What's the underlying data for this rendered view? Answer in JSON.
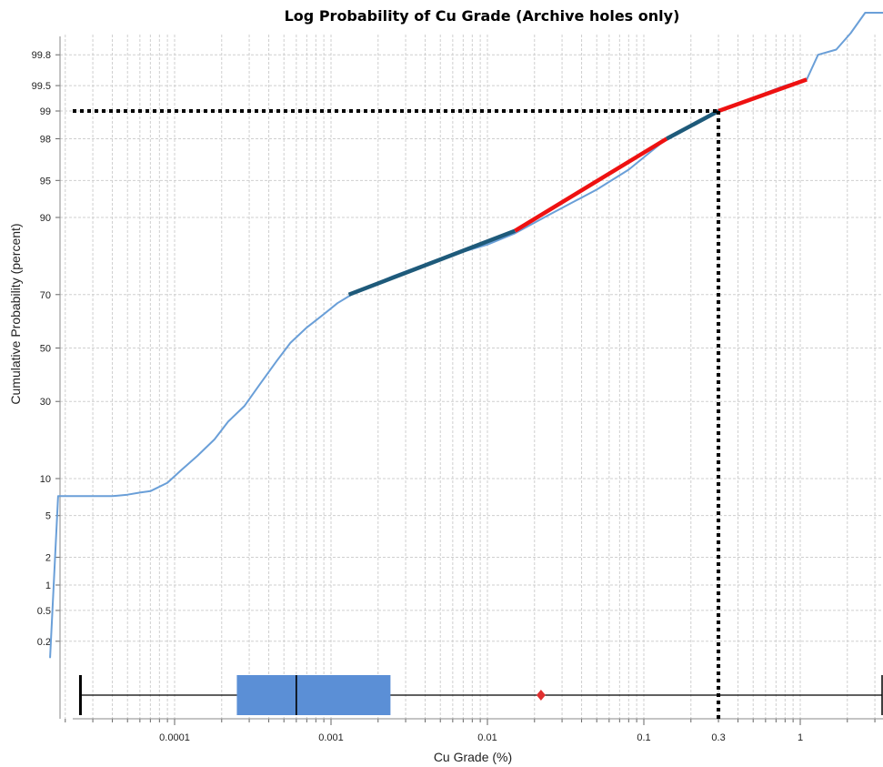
{
  "chart_data": {
    "type": "line",
    "title": "Log Probability of Cu Grade (Archive holes only)",
    "xlabel": "Cu Grade (%)",
    "ylabel": "Cumulative Probability (percent)",
    "x_scale": "log",
    "y_scale": "probability",
    "xlim": [
      1.5e-05,
      4
    ],
    "ylim": [
      0.1,
      99.95
    ],
    "x_ticks": [
      {
        "value": 0.0001,
        "label": "0.0001"
      },
      {
        "value": 0.001,
        "label": "0.001"
      },
      {
        "value": 0.01,
        "label": "0.01"
      },
      {
        "value": 0.1,
        "label": "0.1"
      },
      {
        "value": 0.3,
        "label": "0.3"
      },
      {
        "value": 1,
        "label": "1"
      }
    ],
    "y_ticks": [
      {
        "value": 0.2,
        "label": "0.2"
      },
      {
        "value": 0.5,
        "label": "0.5"
      },
      {
        "value": 1,
        "label": "1"
      },
      {
        "value": 2,
        "label": "2"
      },
      {
        "value": 5,
        "label": "5"
      },
      {
        "value": 10,
        "label": "10"
      },
      {
        "value": 30,
        "label": "30"
      },
      {
        "value": 50,
        "label": "50"
      },
      {
        "value": 70,
        "label": "70"
      },
      {
        "value": 90,
        "label": "90"
      },
      {
        "value": 95,
        "label": "95"
      },
      {
        "value": 98,
        "label": "98"
      },
      {
        "value": 99,
        "label": "99"
      },
      {
        "value": 99.5,
        "label": "99.5"
      },
      {
        "value": 99.8,
        "label": "99.8"
      }
    ],
    "grid": true,
    "series": [
      {
        "role": "cumulative-curve",
        "color": "#6a9fd8",
        "points": [
          [
            1.6e-05,
            0.12
          ],
          [
            1.8e-05,
            7.3
          ],
          [
            2.5e-05,
            7.3
          ],
          [
            4e-05,
            7.3
          ],
          [
            5e-05,
            7.5
          ],
          [
            6e-05,
            7.8
          ],
          [
            7e-05,
            8.0
          ],
          [
            9e-05,
            9.3
          ],
          [
            0.00011,
            11.5
          ],
          [
            0.00014,
            14.5
          ],
          [
            0.00018,
            18.5
          ],
          [
            0.00022,
            23.5
          ],
          [
            0.00028,
            28.5
          ],
          [
            0.00035,
            36
          ],
          [
            0.00045,
            45
          ],
          [
            0.00055,
            52
          ],
          [
            0.0007,
            58
          ],
          [
            0.0009,
            63
          ],
          [
            0.0011,
            67
          ],
          [
            0.0014,
            70.5
          ],
          [
            0.0025,
            76
          ],
          [
            0.005,
            81
          ],
          [
            0.01,
            84.5
          ],
          [
            0.015,
            87
          ],
          [
            0.025,
            90.5
          ],
          [
            0.05,
            94
          ],
          [
            0.08,
            96
          ],
          [
            0.14,
            98
          ],
          [
            0.3,
            99
          ],
          [
            0.5,
            99.3
          ],
          [
            0.8,
            99.5
          ],
          [
            1.1,
            99.58
          ],
          [
            1.3,
            99.8
          ],
          [
            1.7,
            99.83
          ],
          [
            2.1,
            99.9
          ],
          [
            2.6,
            99.95
          ],
          [
            4.0,
            99.95
          ]
        ]
      },
      {
        "role": "fit-segment",
        "color": "#1e5a7a",
        "points": [
          [
            0.0013,
            70
          ],
          [
            0.015,
            87.5
          ]
        ]
      },
      {
        "role": "fit-segment",
        "color": "#ee1111",
        "points": [
          [
            0.015,
            87.5
          ],
          [
            0.14,
            98
          ]
        ]
      },
      {
        "role": "fit-segment",
        "color": "#1e5a7a",
        "points": [
          [
            0.14,
            98
          ],
          [
            0.3,
            99
          ]
        ]
      },
      {
        "role": "fit-segment",
        "color": "#ee1111",
        "points": [
          [
            0.3,
            99
          ],
          [
            1.1,
            99.58
          ]
        ]
      }
    ],
    "reference_lines": {
      "x": 0.3,
      "y": 99,
      "style": "dotted",
      "color": "#000000"
    },
    "boxplot": {
      "orientation": "horizontal",
      "whisker_low": 2.5e-05,
      "q1": 0.00025,
      "median": 0.0006,
      "q3": 0.0024,
      "whisker_high": 4.0,
      "mean": 0.022,
      "box_color": "#5b8fd6",
      "mean_color": "#e03030"
    }
  }
}
